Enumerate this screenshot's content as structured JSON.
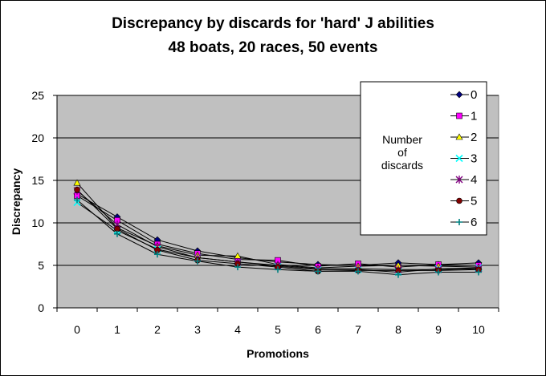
{
  "chart_data": {
    "type": "line",
    "title": "Discrepancy by discards for 'hard' J abilities",
    "subtitle": "48 boats, 20 races, 50 events",
    "xlabel": "Promotions",
    "ylabel": "Discrepancy",
    "categories": [
      "0",
      "1",
      "2",
      "3",
      "4",
      "5",
      "6",
      "7",
      "8",
      "9",
      "10"
    ],
    "ylim": [
      0,
      25
    ],
    "yticks": [
      "0",
      "5",
      "10",
      "15",
      "20",
      "25"
    ],
    "grid": "horizontal",
    "plot_background": "#c0c0c0",
    "legend": {
      "title": "Number of discards",
      "title_lines": [
        "Number",
        "of",
        "discards"
      ],
      "position": "right"
    },
    "series": [
      {
        "name": "0",
        "color": "#000080",
        "marker": "diamond",
        "values": [
          13.4,
          10.7,
          8.0,
          6.7,
          5.9,
          5.4,
          5.1,
          5.0,
          5.3,
          5.1,
          5.3
        ]
      },
      {
        "name": "1",
        "color": "#ff00ff",
        "marker": "square",
        "values": [
          13.2,
          10.3,
          7.5,
          6.4,
          5.7,
          5.6,
          4.9,
          5.2,
          4.8,
          5.1,
          5.0
        ]
      },
      {
        "name": "2",
        "color": "#ffff00",
        "marker": "triangle",
        "values": [
          14.7,
          9.4,
          7.3,
          6.2,
          6.1,
          5.1,
          4.7,
          4.9,
          5.0,
          4.9,
          4.8
        ]
      },
      {
        "name": "3",
        "color": "#00ffff",
        "marker": "x",
        "values": [
          12.4,
          9.1,
          6.9,
          5.9,
          5.4,
          4.9,
          4.5,
          4.5,
          4.2,
          4.6,
          4.7
        ]
      },
      {
        "name": "4",
        "color": "#800080",
        "marker": "star",
        "values": [
          13.8,
          9.8,
          7.2,
          5.9,
          5.4,
          5.0,
          4.6,
          4.6,
          4.5,
          4.5,
          4.6
        ]
      },
      {
        "name": "5",
        "color": "#800000",
        "marker": "circle",
        "values": [
          13.9,
          9.3,
          6.8,
          5.6,
          5.2,
          4.8,
          4.3,
          4.4,
          4.4,
          4.4,
          4.5
        ]
      },
      {
        "name": "6",
        "color": "#008080",
        "marker": "plus",
        "values": [
          12.7,
          8.7,
          6.3,
          5.5,
          4.8,
          4.5,
          4.3,
          4.3,
          3.9,
          4.2,
          4.2
        ]
      }
    ]
  }
}
